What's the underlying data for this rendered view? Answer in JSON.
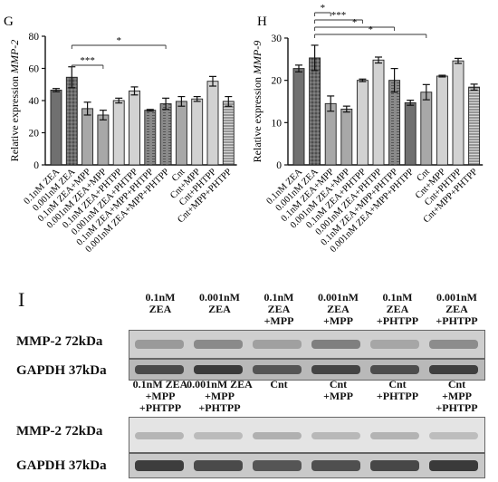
{
  "chart_data": [
    {
      "type": "bar",
      "panel": "G",
      "ylabel": "Relative expression MMP-2",
      "ylim": [
        0,
        80
      ],
      "yticks": [
        0,
        20,
        40,
        60,
        80
      ],
      "categories": [
        "0.1nM ZEA",
        "0.001nM ZEA",
        "0.1nM ZEA+MPP",
        "0.001nM ZEA+MPP",
        "0.1nM ZEA+PHTPP",
        "0.001nM ZEA+PHTPP",
        "0.1nM ZEA+MPP+PHTPP",
        "0.001nM ZEA+MPP+PHTPP",
        "Cnt",
        "Cnt+MPP",
        "Cnt+PHTPP",
        "Cnt+MPP+PHTPP"
      ],
      "values": [
        46.5,
        54.5,
        35,
        31,
        40,
        46,
        34,
        38,
        39.5,
        41,
        52,
        39.5
      ],
      "errors": [
        1,
        6.5,
        4,
        3,
        1.5,
        2.5,
        0.5,
        3.5,
        3,
        1.5,
        3,
        3
      ],
      "bar_fills": [
        "dark",
        "dark-dotted",
        "gray",
        "gray",
        "light",
        "light",
        "gray-dashed",
        "gray-dashed",
        "gray",
        "light",
        "light",
        "striped"
      ],
      "significance": [
        {
          "from": 1,
          "to": 3,
          "label": "***"
        },
        {
          "from": 1,
          "to": 7,
          "label": "*"
        }
      ]
    },
    {
      "type": "bar",
      "panel": "H",
      "ylabel": "Relative expression MMP-9",
      "ylim": [
        0,
        30
      ],
      "yticks": [
        0,
        10,
        20,
        30
      ],
      "categories": [
        "0.1nM ZEA",
        "0.001nM ZEA",
        "0.1nM ZEA+MPP",
        "0.001nM ZEA+MPP",
        "0.1nM ZEA+PHTPP",
        "0.001nM ZEA+PHTPP",
        "0.1nM ZEA+MPP+PHTPP",
        "0.001nM ZEA+MPP+PHTPP",
        "Cnt",
        "Cnt+MPP",
        "Cnt+PHTPP",
        "Cnt+MPP+PHTPP"
      ],
      "values": [
        22.8,
        25.3,
        14.5,
        13.2,
        20,
        24.8,
        20,
        14.7,
        17.2,
        21,
        24.6,
        18.4
      ],
      "errors": [
        0.8,
        3,
        1.8,
        0.7,
        0.3,
        0.7,
        2.8,
        0.6,
        1.8,
        0.2,
        0.6,
        0.7
      ],
      "bar_fills": [
        "dark",
        "dark-dotted",
        "gray",
        "gray",
        "light",
        "light",
        "gray-dashed",
        "dark",
        "gray",
        "light",
        "light",
        "striped"
      ],
      "significance": [
        {
          "from": 1,
          "to": 2,
          "label": "*"
        },
        {
          "from": 1,
          "to": 4,
          "label": "***"
        },
        {
          "from": 1,
          "to": 6,
          "label": "*"
        },
        {
          "from": 1,
          "to": 8,
          "label": "*"
        }
      ]
    }
  ],
  "blot": {
    "panel": "I",
    "row1_headers": [
      [
        "0.1nM",
        "ZEA"
      ],
      [
        "0.001nM",
        "ZEA"
      ],
      [
        "0.1nM",
        "ZEA",
        "+MPP"
      ],
      [
        "0.001nM",
        "ZEA",
        "+MPP"
      ],
      [
        "0.1nM",
        "ZEA",
        "+PHTPP"
      ],
      [
        "0.001nM",
        "ZEA",
        "+PHTPP"
      ]
    ],
    "row2_headers": [
      [
        "0.1nM ZEA",
        "+MPP",
        "+PHTPP"
      ],
      [
        "0.001nM ZEA",
        "+MPP",
        "+PHTPP"
      ],
      [
        "Cnt"
      ],
      [
        "Cnt",
        "+MPP"
      ],
      [
        "Cnt",
        "+PHTPP"
      ],
      [
        "Cnt",
        "+MPP",
        "+PHTPP"
      ]
    ],
    "mmp_label": "MMP-2 72kDa",
    "gapdh_label": "GAPDH 37kDa"
  }
}
